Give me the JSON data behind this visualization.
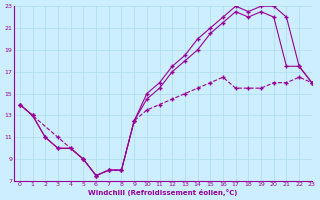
{
  "xlabel": "Windchill (Refroidissement éolien,°C)",
  "xlim": [
    -0.5,
    23
  ],
  "ylim": [
    7,
    23
  ],
  "xticks": [
    0,
    1,
    2,
    3,
    4,
    5,
    6,
    7,
    8,
    9,
    10,
    11,
    12,
    13,
    14,
    15,
    16,
    17,
    18,
    19,
    20,
    21,
    22,
    23
  ],
  "yticks": [
    7,
    9,
    11,
    13,
    15,
    17,
    19,
    21,
    23
  ],
  "background_color": "#cceeff",
  "grid_color": "#aaddee",
  "line_color": "#990099",
  "line1_x": [
    0,
    1,
    2,
    3,
    4,
    5,
    6,
    7,
    8,
    9,
    10,
    11,
    12,
    13,
    14,
    15,
    16,
    17,
    18,
    19,
    20,
    21,
    22,
    23
  ],
  "line1_y": [
    14,
    13,
    11,
    10,
    10,
    9,
    7.5,
    8,
    8,
    12.5,
    15,
    16,
    17.5,
    18.5,
    20,
    21,
    22,
    23,
    22.5,
    23,
    23,
    22,
    17.5,
    16
  ],
  "line2_x": [
    0,
    1,
    2,
    3,
    4,
    5,
    6,
    7,
    8,
    9,
    10,
    11,
    12,
    13,
    14,
    15,
    16,
    17,
    18,
    19,
    20,
    21,
    22,
    23
  ],
  "line2_y": [
    14,
    13,
    11,
    10,
    10,
    9,
    7.5,
    8,
    8,
    12.5,
    14.5,
    15.5,
    17,
    18,
    19,
    20.5,
    21.5,
    22.5,
    22,
    22.5,
    22,
    17.5,
    17.5,
    16
  ],
  "line3_x": [
    0,
    1,
    3,
    5,
    6,
    7,
    8,
    9,
    10,
    11,
    12,
    13,
    14,
    15,
    16,
    17,
    18,
    19,
    20,
    21,
    22,
    23
  ],
  "line3_y": [
    14,
    13,
    11,
    9,
    7.5,
    8,
    8,
    12.5,
    13.5,
    14,
    14.5,
    15,
    15.5,
    16,
    16.5,
    15.5,
    15.5,
    15.5,
    16,
    16,
    16.5,
    16
  ]
}
